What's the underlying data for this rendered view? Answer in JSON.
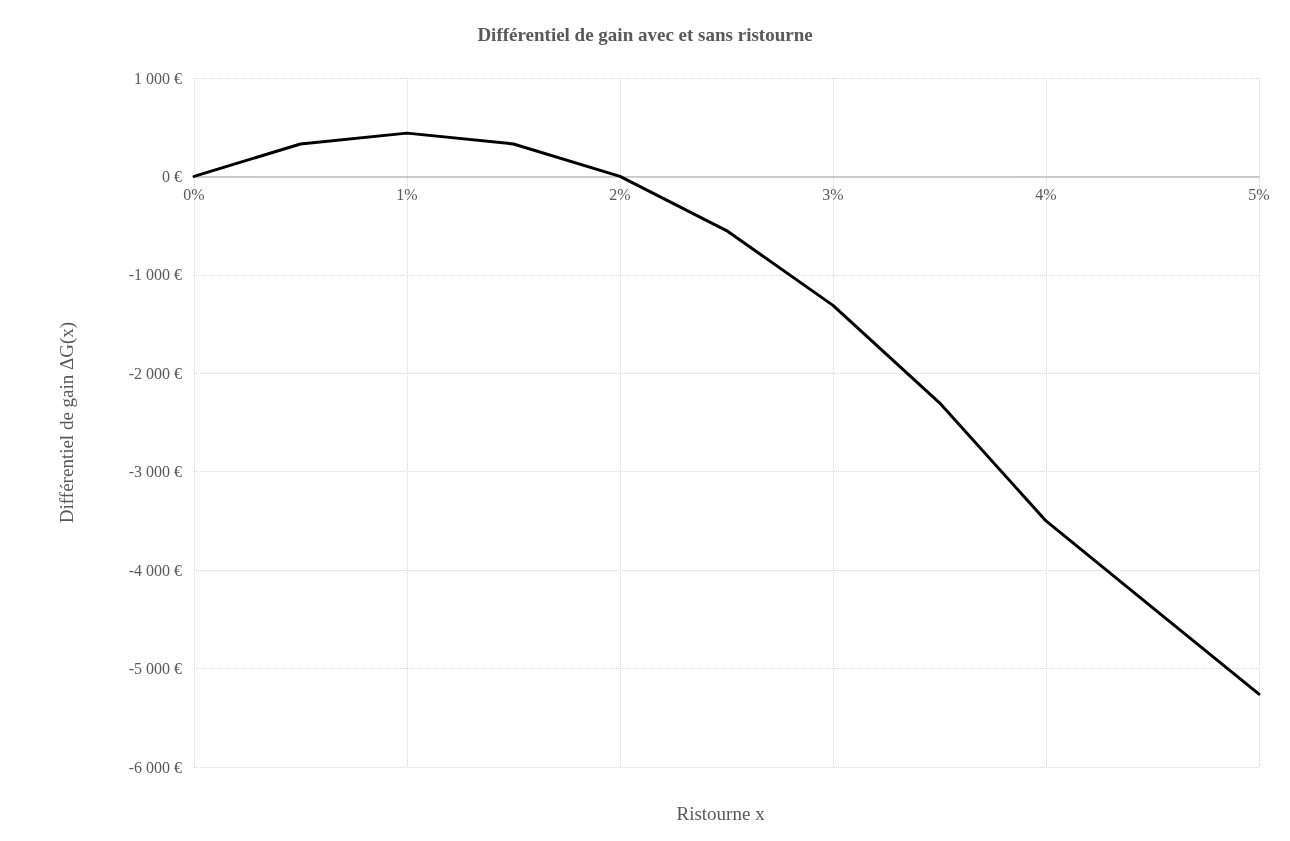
{
  "chart_data": {
    "type": "line",
    "title": "Différentiel de gain avec et sans ristourne",
    "xlabel": "Ristourne x",
    "ylabel": "Différentiel de gain ΔG(x)",
    "x": [
      0,
      0.5,
      1,
      1.5,
      2,
      2.5,
      3,
      3.5,
      4,
      4.5,
      5
    ],
    "series": [
      {
        "color": "#000000",
        "values": [
          0,
          330,
          440,
          330,
          0,
          -550,
          -1310,
          -2300,
          -3500,
          -4380,
          -5260
        ]
      }
    ],
    "xlim": [
      0,
      5
    ],
    "xticks": [
      {
        "value": 0,
        "label": "0%"
      },
      {
        "value": 1,
        "label": "1%"
      },
      {
        "value": 2,
        "label": "2%"
      },
      {
        "value": 3,
        "label": "3%"
      },
      {
        "value": 4,
        "label": "4%"
      },
      {
        "value": 5,
        "label": "5%"
      }
    ],
    "ylim": [
      -6000,
      1000
    ],
    "yticks": [
      {
        "value": -6000,
        "label": "-6 000 €"
      },
      {
        "value": -5000,
        "label": "-5 000 €"
      },
      {
        "value": -4000,
        "label": "-4 000 €"
      },
      {
        "value": -3000,
        "label": "-3 000 €"
      },
      {
        "value": -2000,
        "label": "-2 000 €"
      },
      {
        "value": -1000,
        "label": "-1 000 €"
      },
      {
        "value": 0,
        "label": "0 €"
      },
      {
        "value": 1000,
        "label": "1 000 €"
      }
    ],
    "grid": true,
    "marker": "none",
    "line_style": "solid"
  }
}
